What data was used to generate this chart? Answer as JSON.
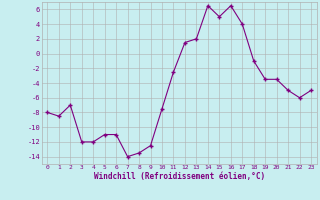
{
  "x": [
    0,
    1,
    2,
    3,
    4,
    5,
    6,
    7,
    8,
    9,
    10,
    11,
    12,
    13,
    14,
    15,
    16,
    17,
    18,
    19,
    20,
    21,
    22,
    23
  ],
  "y": [
    -8,
    -8.5,
    -7,
    -12,
    -12,
    -11,
    -11,
    -14,
    -13.5,
    -12.5,
    -7.5,
    -2.5,
    1.5,
    2,
    6.5,
    5,
    6.5,
    4,
    -1,
    -3.5,
    -3.5,
    -5,
    -6,
    -5
  ],
  "line_color": "#800080",
  "marker_color": "#800080",
  "bg_color": "#c8eef0",
  "grid_color": "#b0b0b0",
  "xlabel": "Windchill (Refroidissement éolien,°C)",
  "ylim": [
    -15,
    7
  ],
  "xlim": [
    -0.5,
    23.5
  ],
  "yticks": [
    -14,
    -12,
    -10,
    -8,
    -6,
    -4,
    -2,
    0,
    2,
    4,
    6
  ],
  "xticks": [
    0,
    1,
    2,
    3,
    4,
    5,
    6,
    7,
    8,
    9,
    10,
    11,
    12,
    13,
    14,
    15,
    16,
    17,
    18,
    19,
    20,
    21,
    22,
    23
  ],
  "xtick_labels": [
    "0",
    "1",
    "2",
    "3",
    "4",
    "5",
    "6",
    "7",
    "8",
    "9",
    "10",
    "11",
    "12",
    "13",
    "14",
    "15",
    "16",
    "17",
    "18",
    "19",
    "20",
    "21",
    "22",
    "23"
  ]
}
